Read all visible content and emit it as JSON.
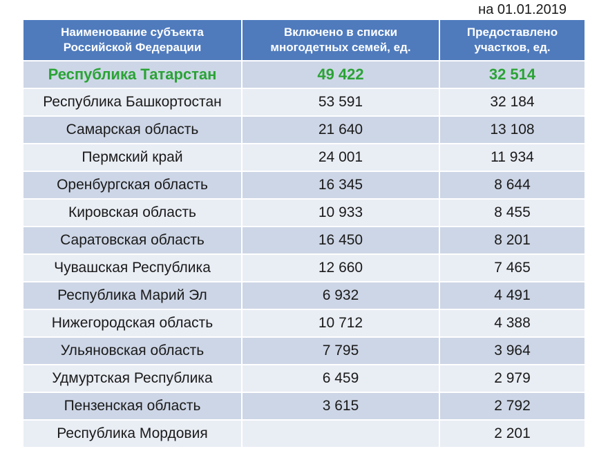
{
  "date_note": "на 01.01.2019",
  "table": {
    "headers": [
      "Наименование субъекта Российской Федерации",
      "Включено в списки многодетных семей, ед.",
      "Предоставлено участков, ед."
    ],
    "rows": [
      {
        "region": "Республика Татарстан",
        "families": "49 422",
        "plots": "32 514",
        "highlight": true
      },
      {
        "region": "Республика Башкортостан",
        "families": "53 591",
        "plots": "32 184"
      },
      {
        "region": "Самарская область",
        "families": "21 640",
        "plots": "13 108"
      },
      {
        "region": "Пермский край",
        "families": "24 001",
        "plots": "11 934"
      },
      {
        "region": "Оренбургская область",
        "families": "16 345",
        "plots": "8 644"
      },
      {
        "region": "Кировская область",
        "families": "10 933",
        "plots": "8 455"
      },
      {
        "region": "Саратовская область",
        "families": "16 450",
        "plots": "8 201"
      },
      {
        "region": "Чувашская Республика",
        "families": "12 660",
        "plots": "7 465"
      },
      {
        "region": "Республика Марий Эл",
        "families": "6 932",
        "plots": "4 491"
      },
      {
        "region": "Нижегородская область",
        "families": "10 712",
        "plots": "4 388"
      },
      {
        "region": "Ульяновская область",
        "families": "7 795",
        "plots": "3 964"
      },
      {
        "region": "Удмуртская Республика",
        "families": "6 459",
        "plots": "2 979"
      },
      {
        "region": "Пензенская область",
        "families": "3 615",
        "plots": "2 792"
      },
      {
        "region": "Республика Мордовия",
        "families": "",
        "plots": "2 201"
      }
    ]
  },
  "colors": {
    "header_bg": "#4f7bbd",
    "row_dark": "#cdd6e6",
    "row_light": "#e9edf4",
    "highlight_text": "#2aa335"
  }
}
